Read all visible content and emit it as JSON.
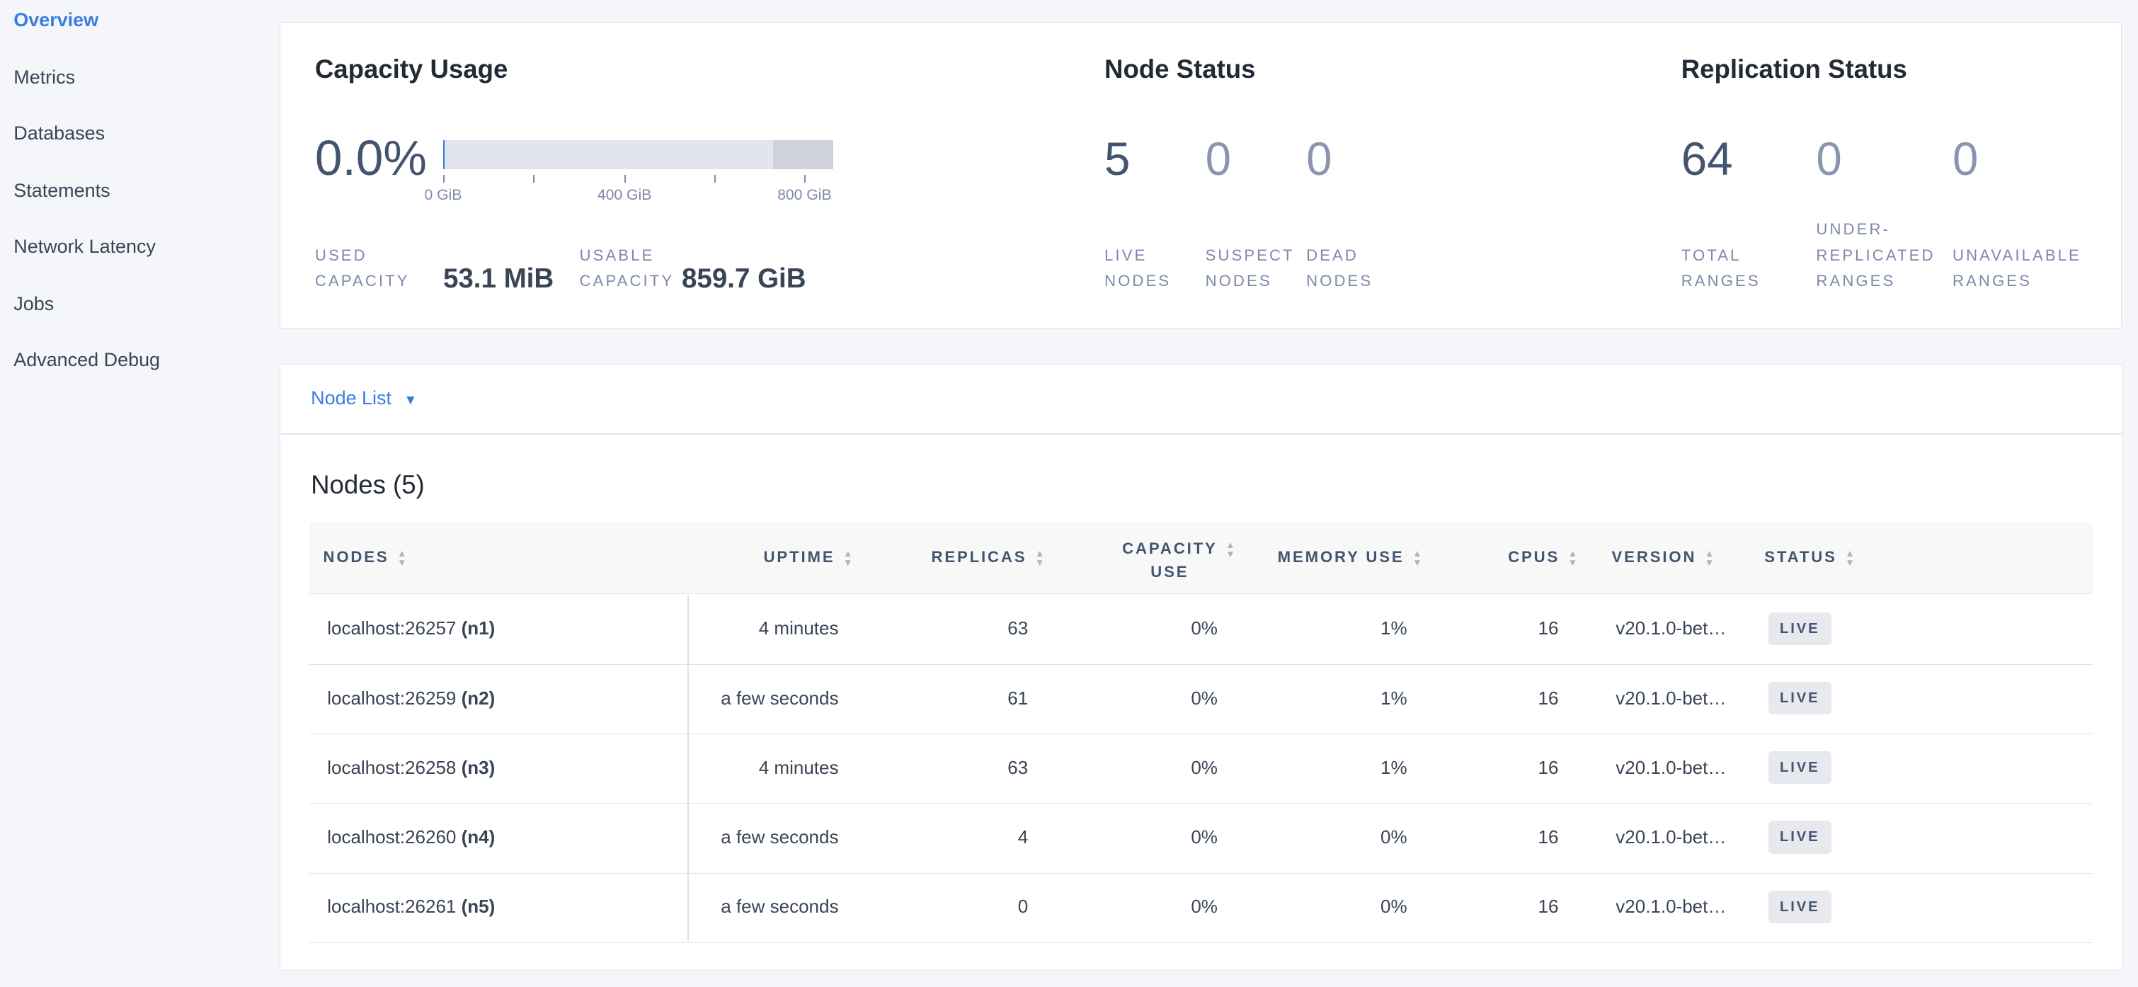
{
  "sidebar": {
    "items": [
      {
        "label": "Overview",
        "active": true
      },
      {
        "label": "Metrics"
      },
      {
        "label": "Databases"
      },
      {
        "label": "Statements"
      },
      {
        "label": "Network Latency"
      },
      {
        "label": "Jobs"
      },
      {
        "label": "Advanced Debug"
      }
    ]
  },
  "capacity": {
    "title": "Capacity Usage",
    "percent": "0.0%",
    "used_fraction": 0.0,
    "bar_ticks": [
      "0 GiB",
      "400 GiB",
      "800 GiB"
    ],
    "used_label_1": "USED",
    "used_label_2": "CAPACITY",
    "used_value": "53.1 MiB",
    "usable_label_1": "USABLE",
    "usable_label_2": "CAPACITY",
    "usable_value": "859.7 GiB"
  },
  "node_status": {
    "title": "Node Status",
    "live": "5",
    "suspect": "0",
    "dead": "0",
    "live_l1": "LIVE",
    "live_l2": "NODES",
    "suspect_l1": "SUSPECT",
    "suspect_l2": "NODES",
    "dead_l1": "DEAD",
    "dead_l2": "NODES"
  },
  "replication": {
    "title": "Replication Status",
    "total": "64",
    "under": "0",
    "unavailable": "0",
    "total_l1": "TOTAL",
    "total_l2": "RANGES",
    "under_l0": "UNDER-",
    "under_l1": "REPLICATED",
    "under_l2": "RANGES",
    "unavail_l1": "UNAVAILABLE",
    "unavail_l2": "RANGES"
  },
  "node_list": {
    "dropdown_label": "Node List",
    "heading": "Nodes (5)",
    "columns": {
      "nodes": "NODES",
      "uptime": "UPTIME",
      "replicas": "REPLICAS",
      "capacity_1": "CAPACITY",
      "capacity_2": "USE",
      "memory": "MEMORY USE",
      "cpus": "CPUS",
      "version": "VERSION",
      "status": "STATUS"
    },
    "rows": [
      {
        "host": "localhost:26257",
        "id": "(n1)",
        "uptime": "4 minutes",
        "replicas": "63",
        "capacity": "0%",
        "memory": "1%",
        "cpus": "16",
        "version": "v20.1.0-bet…",
        "status": "LIVE"
      },
      {
        "host": "localhost:26259",
        "id": "(n2)",
        "uptime": "a few seconds",
        "replicas": "61",
        "capacity": "0%",
        "memory": "1%",
        "cpus": "16",
        "version": "v20.1.0-bet…",
        "status": "LIVE"
      },
      {
        "host": "localhost:26258",
        "id": "(n3)",
        "uptime": "4 minutes",
        "replicas": "63",
        "capacity": "0%",
        "memory": "1%",
        "cpus": "16",
        "version": "v20.1.0-bet…",
        "status": "LIVE"
      },
      {
        "host": "localhost:26260",
        "id": "(n4)",
        "uptime": "a few seconds",
        "replicas": "4",
        "capacity": "0%",
        "memory": "0%",
        "cpus": "16",
        "version": "v20.1.0-bet…",
        "status": "LIVE"
      },
      {
        "host": "localhost:26261",
        "id": "(n5)",
        "uptime": "a few seconds",
        "replicas": "0",
        "capacity": "0%",
        "memory": "0%",
        "cpus": "16",
        "version": "v20.1.0-bet…",
        "status": "LIVE"
      }
    ]
  },
  "colors": {
    "accent": "#3a7de1",
    "text": "#394455",
    "muted": "#7e89a9",
    "badge_bg": "#e7e9ef"
  }
}
